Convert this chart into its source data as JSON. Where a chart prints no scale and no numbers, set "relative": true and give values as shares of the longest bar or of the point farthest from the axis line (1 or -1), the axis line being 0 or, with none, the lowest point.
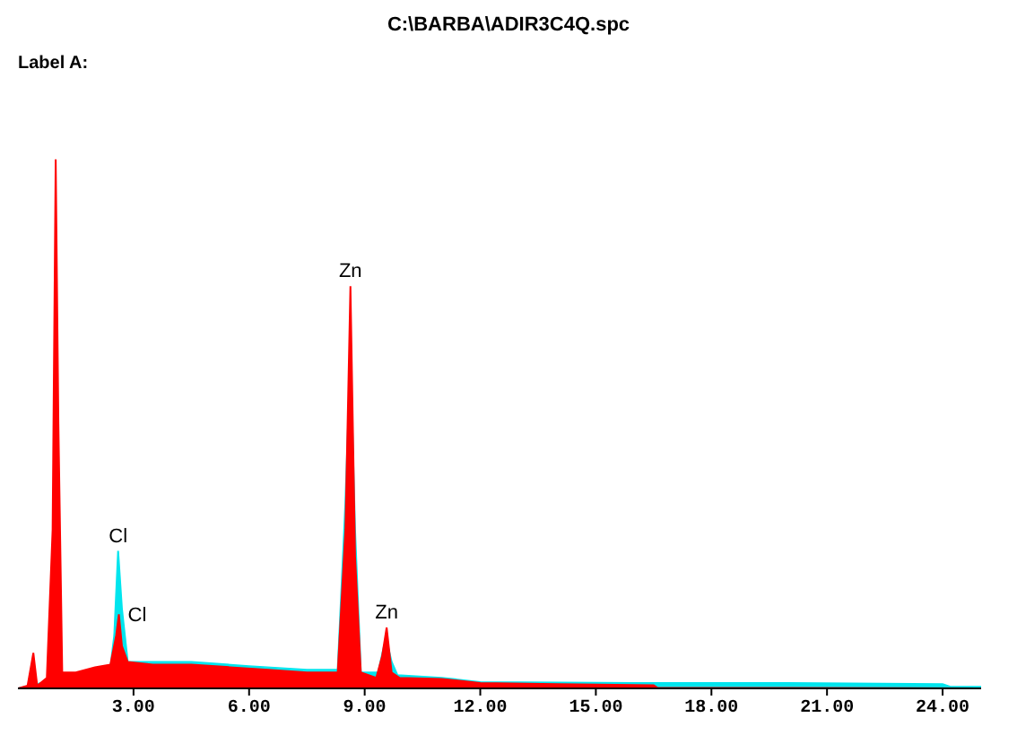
{
  "chart_data": {
    "type": "area",
    "title": "C:\\BARBA\\ADIR3C4Q.spc",
    "relative": true,
    "xlim": [
      0,
      25
    ],
    "xticks": [
      {
        "value": 3,
        "label": "3.00"
      },
      {
        "value": 6,
        "label": "6.00"
      },
      {
        "value": 9,
        "label": "9.00"
      },
      {
        "value": 12,
        "label": "12.00"
      },
      {
        "value": 15,
        "label": "15.00"
      },
      {
        "value": 18,
        "label": "18.00"
      },
      {
        "value": 21,
        "label": "21.00"
      },
      {
        "value": 24,
        "label": "24.00"
      }
    ],
    "grid": false,
    "legend": false,
    "tick_labels": "x",
    "series": [
      {
        "color": "#00e5ee",
        "x": [
          0,
          1.2,
          2.0,
          2.4,
          2.5,
          2.6,
          2.7,
          2.85,
          3.5,
          4.5,
          6,
          7.5,
          8.3,
          8.5,
          8.63,
          8.75,
          8.9,
          9.35,
          9.5,
          9.57,
          9.7,
          9.85,
          11,
          12,
          16,
          20,
          24,
          24.2,
          25
        ],
        "values": [
          0,
          0.02,
          0.035,
          0.04,
          0.1,
          0.26,
          0.15,
          0.05,
          0.05,
          0.05,
          0.042,
          0.035,
          0.035,
          0.35,
          0.63,
          0.3,
          0.03,
          0.03,
          0.08,
          0.09,
          0.05,
          0.025,
          0.02,
          0.012,
          0.01,
          0.01,
          0.008,
          0.003,
          0.003
        ]
      },
      {
        "color": "#ff0000",
        "x": [
          0,
          0.25,
          0.4,
          0.5,
          0.75,
          0.9,
          0.98,
          1.05,
          1.15,
          1.5,
          2.0,
          2.4,
          2.55,
          2.62,
          2.7,
          2.85,
          3.5,
          4.5,
          5.5,
          6.5,
          7.5,
          8.3,
          8.5,
          8.63,
          8.75,
          8.9,
          9.3,
          9.45,
          9.57,
          9.7,
          9.9,
          11,
          12,
          14,
          16.5,
          16.6,
          20,
          25
        ],
        "values": [
          0,
          0.005,
          0.067,
          0.005,
          0.02,
          0.3,
          1.0,
          0.5,
          0.03,
          0.03,
          0.04,
          0.045,
          0.1,
          0.14,
          0.08,
          0.05,
          0.045,
          0.045,
          0.04,
          0.035,
          0.03,
          0.03,
          0.3,
          0.76,
          0.25,
          0.03,
          0.02,
          0.06,
          0.115,
          0.03,
          0.02,
          0.018,
          0.01,
          0.008,
          0.006,
          0.001,
          0.001,
          0
        ]
      }
    ],
    "annotations": [
      "Label A:",
      {
        "text": "Cl",
        "x": 2.6,
        "y": 0.26
      },
      {
        "text": "Cl",
        "x": 2.62,
        "y": 0.14
      },
      {
        "text": "Zn",
        "x": 8.63,
        "y": 0.76
      },
      {
        "text": "Zn",
        "x": 9.57,
        "y": 0.115
      }
    ]
  }
}
